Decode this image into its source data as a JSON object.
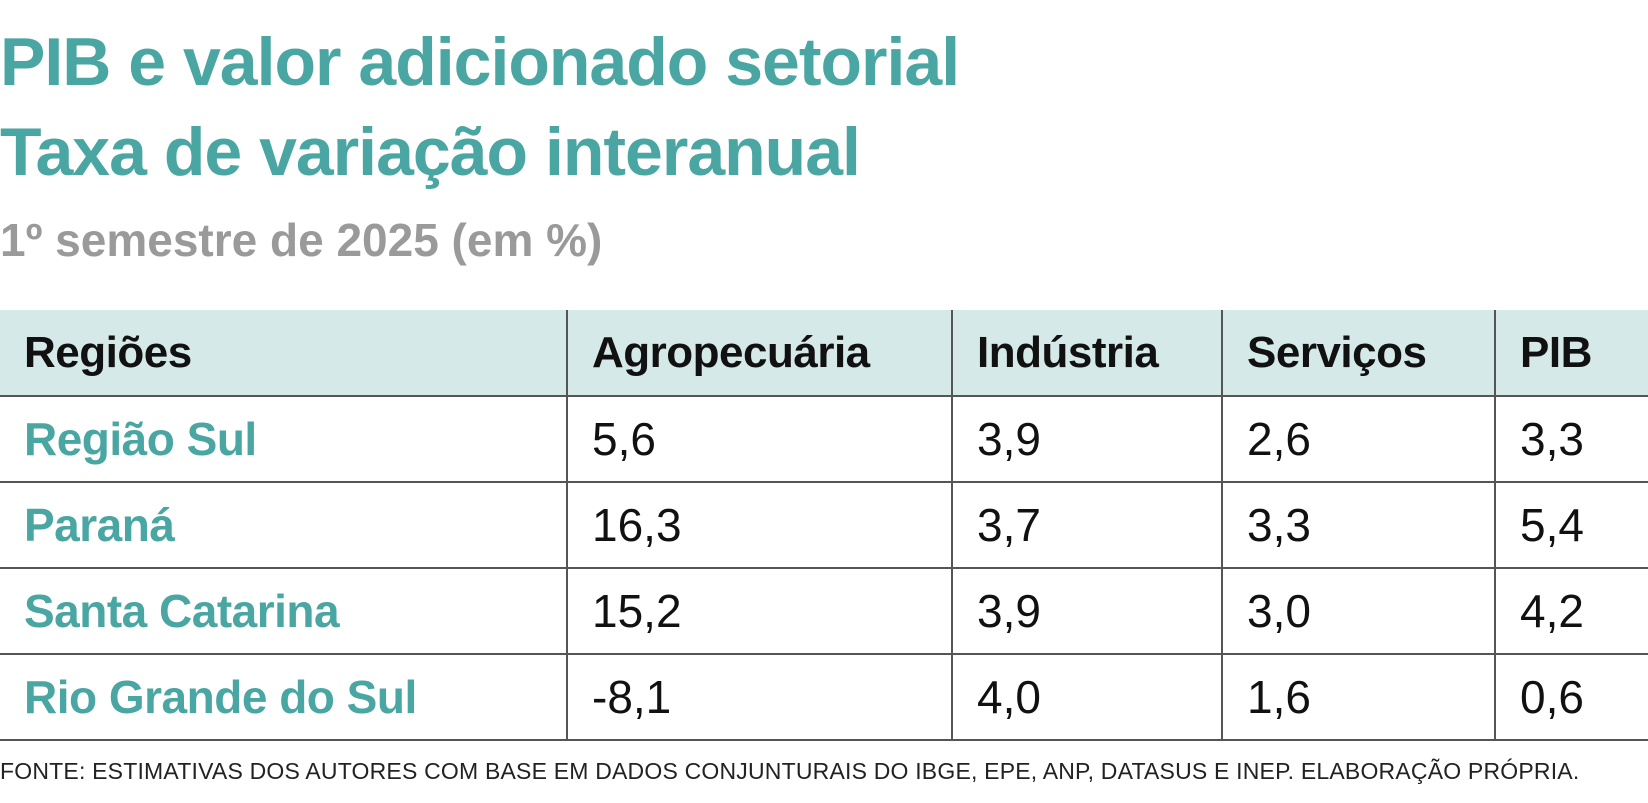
{
  "chart_data": {
    "type": "table",
    "title": "PIB e valor adicionado setorial",
    "title_line2": "Taxa de variação interanual",
    "subtitle": "1º semestre de 2025 (em %)",
    "columns": [
      "Regiões",
      "Agropecuária",
      "Indústria",
      "Serviços",
      "PIB"
    ],
    "rows": [
      {
        "region": "Região Sul",
        "values": [
          "5,6",
          "3,9",
          "2,6",
          "3,3"
        ]
      },
      {
        "region": "Paraná",
        "values": [
          "16,3",
          "3,7",
          "3,3",
          "5,4"
        ]
      },
      {
        "region": "Santa Catarina",
        "values": [
          "15,2",
          "3,9",
          "3,0",
          "4,2"
        ]
      },
      {
        "region": "Rio Grande do Sul",
        "values": [
          "-8,1",
          "4,0",
          "1,6",
          "0,6"
        ]
      }
    ],
    "source": "FONTE: ESTIMATIVAS DOS AUTORES COM BASE EM DADOS CONJUNTURAIS DO IBGE, EPE, ANP, DATASUS E INEP. ELABORAÇÃO PRÓPRIA."
  },
  "colors": {
    "accent": "#4aa6a2",
    "header_bg": "#d4e9e8",
    "subtitle": "#9a9a9a"
  }
}
